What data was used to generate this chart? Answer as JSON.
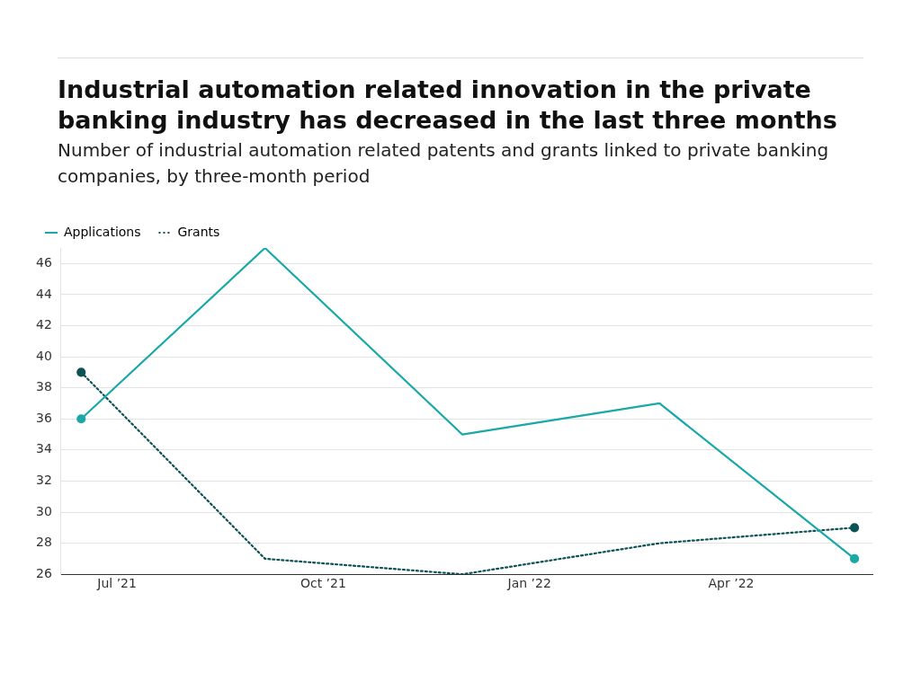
{
  "chart_data": {
    "type": "line",
    "title": "Industrial automation related innovation in the private banking industry has decreased in the last three months",
    "subtitle": "Number of industrial automation related patents and grants linked to private banking companies, by three-month period",
    "x": [
      "2021-06-15",
      "2021-09-05",
      "2021-12-02",
      "2022-02-28",
      "2022-05-26"
    ],
    "series": [
      {
        "name": "Applications",
        "color": "#1aa8a8",
        "line_style": "solid",
        "values": [
          36,
          47,
          35,
          37,
          27
        ]
      },
      {
        "name": "Grants",
        "color": "#0d5257",
        "line_style": "dotted",
        "values": [
          39,
          27,
          26,
          28,
          29
        ]
      }
    ],
    "xlim": [
      "2021-06-06",
      "2022-06-03"
    ],
    "xticks": [
      {
        "value": "2021-07-01",
        "label": "Jul ’21"
      },
      {
        "value": "2021-10-01",
        "label": "Oct ’21"
      },
      {
        "value": "2022-01-01",
        "label": "Jan ’22"
      },
      {
        "value": "2022-04-01",
        "label": "Apr ’22"
      }
    ],
    "ylim": [
      26,
      47
    ],
    "yticks": [
      26,
      28,
      30,
      32,
      34,
      36,
      38,
      40,
      42,
      44,
      46
    ],
    "grid": "y",
    "legend": "top left"
  }
}
